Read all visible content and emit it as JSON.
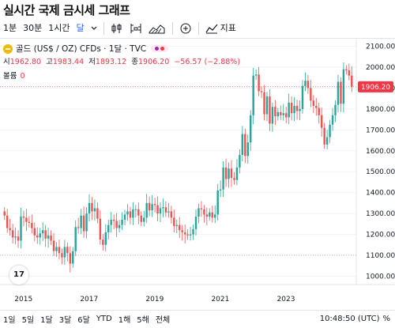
{
  "page": {
    "title": "실시간 국제 금시세 그래프"
  },
  "toolbar": {
    "intervals": [
      "1분",
      "30분",
      "1시간",
      "달"
    ],
    "active_interval": 3,
    "indicators_label": "지표"
  },
  "legend": {
    "symbol": "골드 (US$ / OZ) CFDs · 1달 · TVC",
    "open_label": "시",
    "open": "1962.80",
    "high_label": "고",
    "high": "1983.44",
    "low_label": "저",
    "low": "1893.12",
    "close_label": "종",
    "close": "1906.20",
    "change": "−56.57 (−2.88%)",
    "volume_label": "볼륨",
    "volume": "0"
  },
  "colors": {
    "up": "#26a69a",
    "down": "#ef5350",
    "price_tag": "#f23645",
    "accent": "#2962ff"
  },
  "chart_data": {
    "type": "candlestick",
    "yticks": [
      1000,
      1100,
      1200,
      1300,
      1400,
      1500,
      1600,
      1700,
      1800,
      1900,
      2000,
      2100
    ],
    "ylim": [
      960,
      2140
    ],
    "xticks": [
      "2015",
      "2017",
      "2019",
      "2021",
      "2023"
    ],
    "last_price": "1906.20",
    "reference_line": 1100,
    "close": [
      1290,
      1230,
      1220,
      1185,
      1190,
      1170,
      1285,
      1280,
      1260,
      1255,
      1230,
      1195,
      1185,
      1205,
      1220,
      1180,
      1195,
      1170,
      1120,
      1140,
      1110,
      1090,
      1140,
      1110,
      1060,
      1120,
      1235,
      1230,
      1290,
      1215,
      1300,
      1350,
      1310,
      1325,
      1275,
      1175,
      1150,
      1210,
      1245,
      1270,
      1265,
      1230,
      1245,
      1270,
      1295,
      1310,
      1280,
      1320,
      1320,
      1290,
      1260,
      1280,
      1350,
      1315,
      1345,
      1340,
      1300,
      1325,
      1330,
      1305,
      1310,
      1280,
      1240,
      1245,
      1220,
      1210,
      1200,
      1195,
      1200,
      1225,
      1285,
      1325,
      1320,
      1295,
      1285,
      1305,
      1280,
      1295,
      1410,
      1415,
      1520,
      1465,
      1515,
      1470,
      1460,
      1520,
      1580,
      1680,
      1575,
      1640,
      1770,
      1960,
      1965,
      1885,
      1880,
      1775,
      1860,
      1730,
      1810,
      1765,
      1785,
      1770,
      1780,
      1760,
      1830,
      1780,
      1815,
      1790,
      1800,
      1910,
      1935,
      1900,
      1840,
      1815,
      1805,
      1770,
      1710,
      1630,
      1665,
      1725,
      1770,
      1820,
      1930,
      1825,
      1990,
      1985,
      1960,
      1906
    ]
  }
}
